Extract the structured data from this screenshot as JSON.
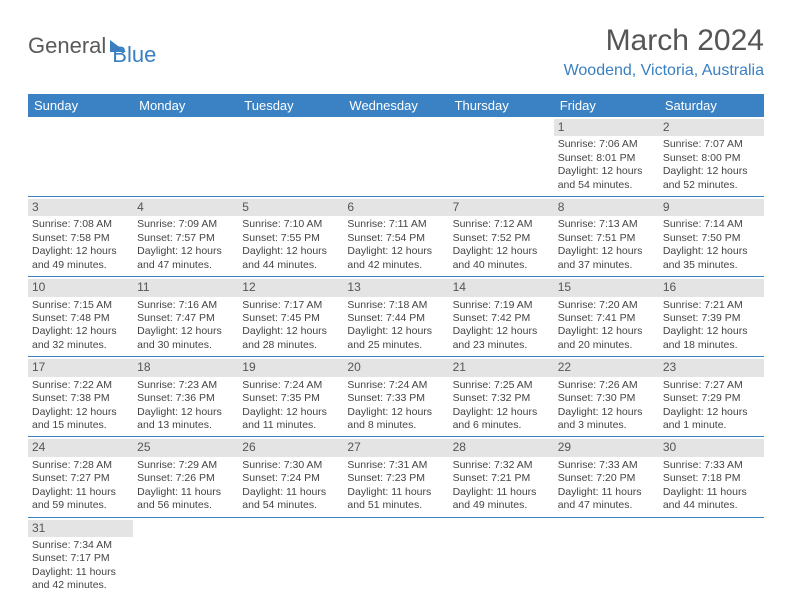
{
  "logo": {
    "part1": "General",
    "part2": "Blue"
  },
  "title": "March 2024",
  "location": "Woodend, Victoria, Australia",
  "colors": {
    "header_bg": "#3a82c4",
    "accent": "#3a7fc0",
    "cell_date_bg": "#e4e4e4",
    "text": "#444444",
    "page_bg": "#ffffff"
  },
  "fonts": {
    "title_size": 30,
    "location_size": 16,
    "dayhead_size": 13,
    "cell_size": 10.5
  },
  "layout": {
    "columns": 7,
    "weeks": 6
  },
  "day_headers": [
    "Sunday",
    "Monday",
    "Tuesday",
    "Wednesday",
    "Thursday",
    "Friday",
    "Saturday"
  ],
  "weeks": [
    [
      null,
      null,
      null,
      null,
      null,
      {
        "d": "1",
        "sr": "Sunrise: 7:06 AM",
        "ss": "Sunset: 8:01 PM",
        "dl": "Daylight: 12 hours and 54 minutes."
      },
      {
        "d": "2",
        "sr": "Sunrise: 7:07 AM",
        "ss": "Sunset: 8:00 PM",
        "dl": "Daylight: 12 hours and 52 minutes."
      }
    ],
    [
      {
        "d": "3",
        "sr": "Sunrise: 7:08 AM",
        "ss": "Sunset: 7:58 PM",
        "dl": "Daylight: 12 hours and 49 minutes."
      },
      {
        "d": "4",
        "sr": "Sunrise: 7:09 AM",
        "ss": "Sunset: 7:57 PM",
        "dl": "Daylight: 12 hours and 47 minutes."
      },
      {
        "d": "5",
        "sr": "Sunrise: 7:10 AM",
        "ss": "Sunset: 7:55 PM",
        "dl": "Daylight: 12 hours and 44 minutes."
      },
      {
        "d": "6",
        "sr": "Sunrise: 7:11 AM",
        "ss": "Sunset: 7:54 PM",
        "dl": "Daylight: 12 hours and 42 minutes."
      },
      {
        "d": "7",
        "sr": "Sunrise: 7:12 AM",
        "ss": "Sunset: 7:52 PM",
        "dl": "Daylight: 12 hours and 40 minutes."
      },
      {
        "d": "8",
        "sr": "Sunrise: 7:13 AM",
        "ss": "Sunset: 7:51 PM",
        "dl": "Daylight: 12 hours and 37 minutes."
      },
      {
        "d": "9",
        "sr": "Sunrise: 7:14 AM",
        "ss": "Sunset: 7:50 PM",
        "dl": "Daylight: 12 hours and 35 minutes."
      }
    ],
    [
      {
        "d": "10",
        "sr": "Sunrise: 7:15 AM",
        "ss": "Sunset: 7:48 PM",
        "dl": "Daylight: 12 hours and 32 minutes."
      },
      {
        "d": "11",
        "sr": "Sunrise: 7:16 AM",
        "ss": "Sunset: 7:47 PM",
        "dl": "Daylight: 12 hours and 30 minutes."
      },
      {
        "d": "12",
        "sr": "Sunrise: 7:17 AM",
        "ss": "Sunset: 7:45 PM",
        "dl": "Daylight: 12 hours and 28 minutes."
      },
      {
        "d": "13",
        "sr": "Sunrise: 7:18 AM",
        "ss": "Sunset: 7:44 PM",
        "dl": "Daylight: 12 hours and 25 minutes."
      },
      {
        "d": "14",
        "sr": "Sunrise: 7:19 AM",
        "ss": "Sunset: 7:42 PM",
        "dl": "Daylight: 12 hours and 23 minutes."
      },
      {
        "d": "15",
        "sr": "Sunrise: 7:20 AM",
        "ss": "Sunset: 7:41 PM",
        "dl": "Daylight: 12 hours and 20 minutes."
      },
      {
        "d": "16",
        "sr": "Sunrise: 7:21 AM",
        "ss": "Sunset: 7:39 PM",
        "dl": "Daylight: 12 hours and 18 minutes."
      }
    ],
    [
      {
        "d": "17",
        "sr": "Sunrise: 7:22 AM",
        "ss": "Sunset: 7:38 PM",
        "dl": "Daylight: 12 hours and 15 minutes."
      },
      {
        "d": "18",
        "sr": "Sunrise: 7:23 AM",
        "ss": "Sunset: 7:36 PM",
        "dl": "Daylight: 12 hours and 13 minutes."
      },
      {
        "d": "19",
        "sr": "Sunrise: 7:24 AM",
        "ss": "Sunset: 7:35 PM",
        "dl": "Daylight: 12 hours and 11 minutes."
      },
      {
        "d": "20",
        "sr": "Sunrise: 7:24 AM",
        "ss": "Sunset: 7:33 PM",
        "dl": "Daylight: 12 hours and 8 minutes."
      },
      {
        "d": "21",
        "sr": "Sunrise: 7:25 AM",
        "ss": "Sunset: 7:32 PM",
        "dl": "Daylight: 12 hours and 6 minutes."
      },
      {
        "d": "22",
        "sr": "Sunrise: 7:26 AM",
        "ss": "Sunset: 7:30 PM",
        "dl": "Daylight: 12 hours and 3 minutes."
      },
      {
        "d": "23",
        "sr": "Sunrise: 7:27 AM",
        "ss": "Sunset: 7:29 PM",
        "dl": "Daylight: 12 hours and 1 minute."
      }
    ],
    [
      {
        "d": "24",
        "sr": "Sunrise: 7:28 AM",
        "ss": "Sunset: 7:27 PM",
        "dl": "Daylight: 11 hours and 59 minutes."
      },
      {
        "d": "25",
        "sr": "Sunrise: 7:29 AM",
        "ss": "Sunset: 7:26 PM",
        "dl": "Daylight: 11 hours and 56 minutes."
      },
      {
        "d": "26",
        "sr": "Sunrise: 7:30 AM",
        "ss": "Sunset: 7:24 PM",
        "dl": "Daylight: 11 hours and 54 minutes."
      },
      {
        "d": "27",
        "sr": "Sunrise: 7:31 AM",
        "ss": "Sunset: 7:23 PM",
        "dl": "Daylight: 11 hours and 51 minutes."
      },
      {
        "d": "28",
        "sr": "Sunrise: 7:32 AM",
        "ss": "Sunset: 7:21 PM",
        "dl": "Daylight: 11 hours and 49 minutes."
      },
      {
        "d": "29",
        "sr": "Sunrise: 7:33 AM",
        "ss": "Sunset: 7:20 PM",
        "dl": "Daylight: 11 hours and 47 minutes."
      },
      {
        "d": "30",
        "sr": "Sunrise: 7:33 AM",
        "ss": "Sunset: 7:18 PM",
        "dl": "Daylight: 11 hours and 44 minutes."
      }
    ],
    [
      {
        "d": "31",
        "sr": "Sunrise: 7:34 AM",
        "ss": "Sunset: 7:17 PM",
        "dl": "Daylight: 11 hours and 42 minutes."
      },
      null,
      null,
      null,
      null,
      null,
      null
    ]
  ]
}
